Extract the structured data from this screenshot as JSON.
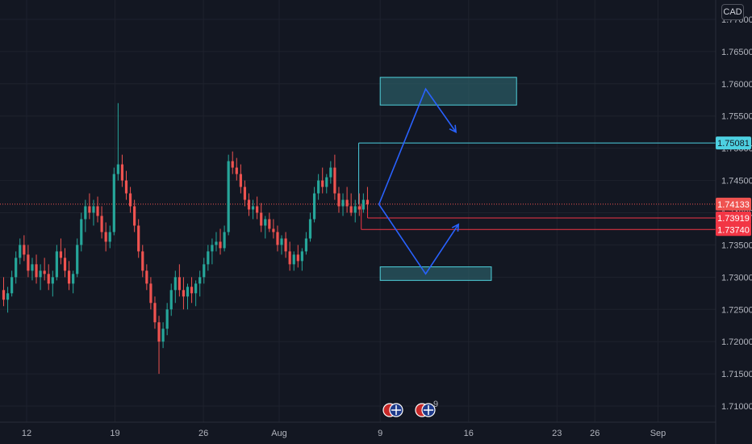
{
  "currency": "CAD",
  "colors": {
    "background": "#131722",
    "grid": "#1e222d",
    "up": "#26a69a",
    "down": "#ef5350",
    "axis_text": "#b2b5be",
    "arrow": "#2962ff",
    "zone_fill": "#2a5a63",
    "zone_stroke": "#4fd1dc",
    "level_cyan": "#4dd0e1",
    "level_red": "#f23645"
  },
  "events": {
    "badge_count": "9"
  },
  "chart_data": {
    "type": "candlestick",
    "ylim": [
      1.7075,
      1.773
    ],
    "y_ticks": [
      "1.77000",
      "1.76500",
      "1.76000",
      "1.75500",
      "1.75000",
      "1.74500",
      "1.74000",
      "1.73500",
      "1.73000",
      "1.72500",
      "1.72000",
      "1.71500",
      "1.71000"
    ],
    "x_ticks": [
      {
        "label": "12",
        "day": 0
      },
      {
        "label": "19",
        "day": 7
      },
      {
        "label": "26",
        "day": 14
      },
      {
        "label": "Aug",
        "day": 20
      },
      {
        "label": "9",
        "day": 28
      },
      {
        "label": "16",
        "day": 35
      },
      {
        "label": "23",
        "day": 42
      },
      {
        "label": "26",
        "day": 45
      },
      {
        "label": "Sep",
        "day": 50
      }
    ],
    "candles_per_day": 6,
    "candles": [
      [
        1.728,
        1.73,
        1.7255,
        1.7265
      ],
      [
        1.7265,
        1.7285,
        1.7245,
        1.7275
      ],
      [
        1.7275,
        1.731,
        1.727,
        1.73
      ],
      [
        1.73,
        1.734,
        1.729,
        1.733
      ],
      [
        1.733,
        1.736,
        1.732,
        1.735
      ],
      [
        1.735,
        1.7365,
        1.7325,
        1.7335
      ],
      [
        1.7335,
        1.735,
        1.73,
        1.731
      ],
      [
        1.731,
        1.733,
        1.7295,
        1.732
      ],
      [
        1.732,
        1.7335,
        1.729,
        1.73
      ],
      [
        1.73,
        1.732,
        1.728,
        1.731
      ],
      [
        1.731,
        1.733,
        1.7295,
        1.7305
      ],
      [
        1.7305,
        1.732,
        1.728,
        1.729
      ],
      [
        1.729,
        1.731,
        1.727,
        1.73
      ],
      [
        1.73,
        1.735,
        1.7295,
        1.734
      ],
      [
        1.734,
        1.736,
        1.732,
        1.733
      ],
      [
        1.733,
        1.7345,
        1.73,
        1.731
      ],
      [
        1.731,
        1.7325,
        1.728,
        1.729
      ],
      [
        1.729,
        1.731,
        1.7275,
        1.7305
      ],
      [
        1.7305,
        1.736,
        1.73,
        1.735
      ],
      [
        1.735,
        1.74,
        1.734,
        1.739
      ],
      [
        1.739,
        1.742,
        1.737,
        1.741
      ],
      [
        1.741,
        1.743,
        1.739,
        1.74
      ],
      [
        1.74,
        1.742,
        1.738,
        1.741
      ],
      [
        1.741,
        1.7425,
        1.7385,
        1.7395
      ],
      [
        1.7395,
        1.741,
        1.736,
        1.737
      ],
      [
        1.737,
        1.7385,
        1.734,
        1.7355
      ],
      [
        1.7355,
        1.738,
        1.7345,
        1.737
      ],
      [
        1.737,
        1.747,
        1.7365,
        1.746
      ],
      [
        1.746,
        1.757,
        1.745,
        1.7475
      ],
      [
        1.7475,
        1.749,
        1.744,
        1.745
      ],
      [
        1.745,
        1.7465,
        1.742,
        1.743
      ],
      [
        1.743,
        1.744,
        1.74,
        1.741
      ],
      [
        1.741,
        1.742,
        1.737,
        1.738
      ],
      [
        1.738,
        1.739,
        1.733,
        1.734
      ],
      [
        1.734,
        1.735,
        1.73,
        1.731
      ],
      [
        1.731,
        1.732,
        1.728,
        1.729
      ],
      [
        1.729,
        1.73,
        1.725,
        1.726
      ],
      [
        1.726,
        1.727,
        1.722,
        1.723
      ],
      [
        1.723,
        1.724,
        1.715,
        1.72
      ],
      [
        1.72,
        1.723,
        1.719,
        1.722
      ],
      [
        1.722,
        1.726,
        1.721,
        1.725
      ],
      [
        1.725,
        1.729,
        1.724,
        1.728
      ],
      [
        1.728,
        1.731,
        1.726,
        1.73
      ],
      [
        1.73,
        1.732,
        1.727,
        1.728
      ],
      [
        1.728,
        1.73,
        1.725,
        1.727
      ],
      [
        1.727,
        1.729,
        1.725,
        1.7285
      ],
      [
        1.7285,
        1.73,
        1.726,
        1.7275
      ],
      [
        1.7275,
        1.7295,
        1.7255,
        1.729
      ],
      [
        1.729,
        1.731,
        1.727,
        1.73
      ],
      [
        1.73,
        1.733,
        1.729,
        1.732
      ],
      [
        1.732,
        1.735,
        1.731,
        1.734
      ],
      [
        1.734,
        1.736,
        1.732,
        1.735
      ],
      [
        1.735,
        1.737,
        1.734,
        1.7355
      ],
      [
        1.7355,
        1.7375,
        1.7335,
        1.7345
      ],
      [
        1.7345,
        1.738,
        1.734,
        1.737
      ],
      [
        1.737,
        1.749,
        1.7365,
        1.748
      ],
      [
        1.748,
        1.7495,
        1.746,
        1.747
      ],
      [
        1.747,
        1.7485,
        1.745,
        1.746
      ],
      [
        1.746,
        1.7475,
        1.743,
        1.744
      ],
      [
        1.744,
        1.745,
        1.741,
        1.742
      ],
      [
        1.742,
        1.743,
        1.7395,
        1.7405
      ],
      [
        1.7405,
        1.742,
        1.739,
        1.741
      ],
      [
        1.741,
        1.7425,
        1.739,
        1.74
      ],
      [
        1.74,
        1.7415,
        1.737,
        1.738
      ],
      [
        1.738,
        1.7395,
        1.736,
        1.739
      ],
      [
        1.739,
        1.74,
        1.737,
        1.7375
      ],
      [
        1.7375,
        1.739,
        1.736,
        1.737
      ],
      [
        1.737,
        1.738,
        1.734,
        1.735
      ],
      [
        1.735,
        1.7365,
        1.7335,
        1.736
      ],
      [
        1.736,
        1.737,
        1.733,
        1.734
      ],
      [
        1.734,
        1.7355,
        1.731,
        1.732
      ],
      [
        1.732,
        1.734,
        1.731,
        1.7335
      ],
      [
        1.7335,
        1.735,
        1.7315,
        1.7325
      ],
      [
        1.7325,
        1.7345,
        1.731,
        1.734
      ],
      [
        1.734,
        1.737,
        1.7335,
        1.736
      ],
      [
        1.736,
        1.74,
        1.7355,
        1.739
      ],
      [
        1.739,
        1.744,
        1.7385,
        1.743
      ],
      [
        1.743,
        1.746,
        1.742,
        1.745
      ],
      [
        1.745,
        1.747,
        1.743,
        1.744
      ],
      [
        1.744,
        1.746,
        1.743,
        1.7455
      ],
      [
        1.7455,
        1.748,
        1.7445,
        1.747
      ],
      [
        1.747,
        1.749,
        1.742,
        1.743
      ],
      [
        1.743,
        1.744,
        1.74,
        1.741
      ],
      [
        1.741,
        1.743,
        1.7395,
        1.742
      ],
      [
        1.742,
        1.744,
        1.74,
        1.741
      ],
      [
        1.741,
        1.743,
        1.7395,
        1.74
      ],
      [
        1.74,
        1.742,
        1.7385,
        1.741
      ],
      [
        1.741,
        1.743,
        1.7395,
        1.7405
      ],
      [
        1.7405,
        1.743,
        1.74,
        1.742
      ],
      [
        1.742,
        1.744,
        1.7405,
        1.7413
      ]
    ],
    "price_labels": [
      {
        "label": "1.75081",
        "value": 1.75081,
        "style": "cyan"
      },
      {
        "label": "1.74133",
        "value": 1.74133,
        "style": "current"
      },
      {
        "label": "1.73919",
        "value": 1.73919,
        "style": "red"
      },
      {
        "label": "1.73740",
        "value": 1.7374,
        "style": "red"
      }
    ],
    "horizontal_levels": [
      {
        "value": 1.75081,
        "from_day": 26.3,
        "style": "cyan"
      },
      {
        "value": 1.73919,
        "from_day": 27.0,
        "style": "red"
      },
      {
        "value": 1.7374,
        "from_day": 26.5,
        "style": "red"
      }
    ],
    "zones": [
      {
        "from_day": 28.0,
        "to_day": 38.8,
        "top": 1.761,
        "bottom": 1.7567
      },
      {
        "from_day": 28.0,
        "to_day": 36.8,
        "top": 1.7316,
        "bottom": 1.7295
      }
    ],
    "paths": [
      [
        [
          27.9,
          1.7413
        ],
        [
          31.6,
          1.7592
        ],
        [
          34.0,
          1.7525
        ]
      ],
      [
        [
          27.9,
          1.7413
        ],
        [
          31.6,
          1.7305
        ],
        [
          34.2,
          1.7382
        ]
      ]
    ]
  }
}
